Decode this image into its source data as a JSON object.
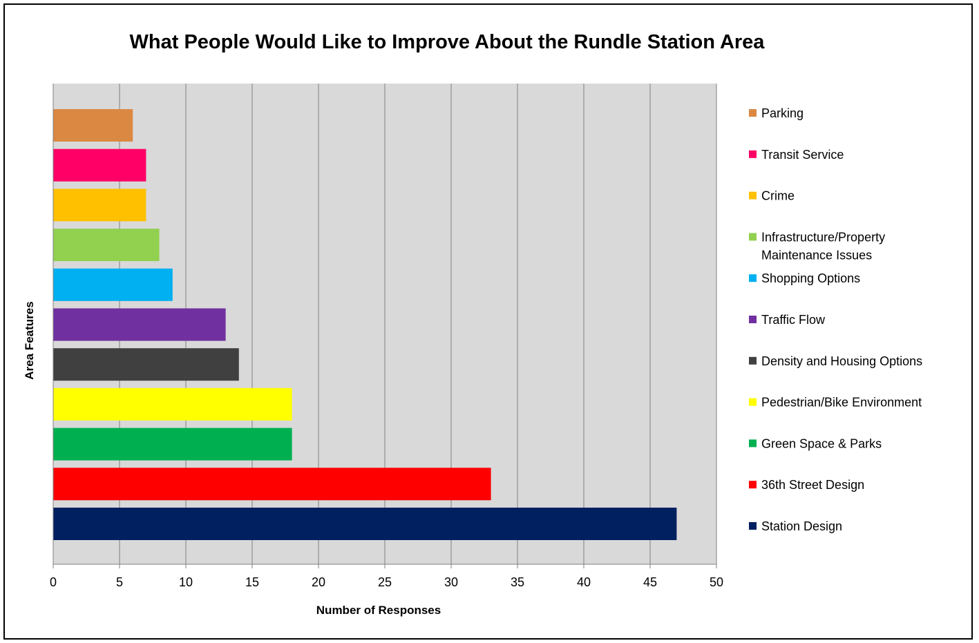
{
  "chart_data": {
    "type": "bar",
    "orientation": "horizontal",
    "title": "What People Would Like to Improve About the Rundle Station Area",
    "xlabel": "Number of Responses",
    "ylabel": "Area Features",
    "xlim": [
      0,
      50
    ],
    "x_ticks": [
      0,
      5,
      10,
      15,
      20,
      25,
      30,
      35,
      40,
      45,
      50
    ],
    "grid": "vertical",
    "legend_position": "right",
    "categories": [
      "Parking",
      "Transit Service",
      "Crime",
      "Infrastructure/Property Maintenance Issues",
      "Shopping Options",
      "Traffic Flow",
      "Density and Housing Options",
      "Pedestrian/Bike Environment",
      "Green Space & Parks",
      "36th Street Design",
      "Station Design"
    ],
    "legend_lines": [
      [
        "Parking"
      ],
      [
        "Transit Service"
      ],
      [
        "Crime"
      ],
      [
        "Infrastructure/Property",
        "Maintenance Issues"
      ],
      [
        "Shopping Options"
      ],
      [
        "Traffic Flow"
      ],
      [
        "Density and Housing Options"
      ],
      [
        "Pedestrian/Bike Environment"
      ],
      [
        "Green Space & Parks"
      ],
      [
        "36th Street Design"
      ],
      [
        "Station Design"
      ]
    ],
    "values": [
      6,
      7,
      7,
      8,
      9,
      13,
      14,
      18,
      18,
      33,
      47
    ],
    "colors": [
      "#DB8843",
      "#FF0066",
      "#FFC000",
      "#92D050",
      "#00B0F0",
      "#7030A0",
      "#404040",
      "#FFFF00",
      "#00B050",
      "#FF0000",
      "#002060"
    ],
    "plot_background": "#D9D9D9",
    "gridline_color": "#808080"
  }
}
